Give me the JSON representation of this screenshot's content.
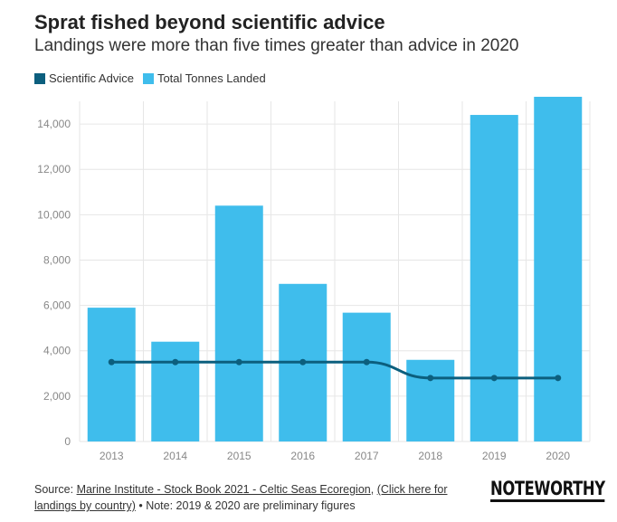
{
  "title": "Sprat fished beyond scientific advice",
  "subtitle": "Landings were more than five times greater than advice in 2020",
  "legend": {
    "advice": "Scientific Advice",
    "landed": "Total Tonnes Landed"
  },
  "colors": {
    "advice": "#0c5f7e",
    "landed": "#3fbdec",
    "grid": "#e6e6e6",
    "axis_text": "#888888"
  },
  "chart_data": {
    "type": "bar",
    "title": "Sprat fished beyond scientific advice",
    "xlabel": "",
    "ylabel": "",
    "ylim": [
      0,
      15000
    ],
    "categories": [
      "2013",
      "2014",
      "2015",
      "2016",
      "2017",
      "2018",
      "2019",
      "2020"
    ],
    "yticks": [
      0,
      2000,
      4000,
      6000,
      8000,
      10000,
      12000,
      14000
    ],
    "ytick_labels": [
      "0",
      "2,000",
      "4,000",
      "6,000",
      "8,000",
      "10,000",
      "12,000",
      "14,000"
    ],
    "series": [
      {
        "name": "Total Tonnes Landed",
        "type": "bar",
        "values": [
          5900,
          4400,
          10400,
          6950,
          5680,
          3600,
          14400,
          15200
        ]
      },
      {
        "name": "Scientific Advice",
        "type": "line",
        "values": [
          3500,
          3500,
          3500,
          3500,
          3500,
          2800,
          2800,
          2800
        ]
      }
    ]
  },
  "source": {
    "prefix": "Source: ",
    "link1": "Marine Institute - Stock Book 2021 - Celtic Seas Ecoregion",
    "sep": ", ",
    "link2": "(Click here for landings by country)",
    "note": " • Note: 2019 & 2020 are preliminary figures"
  },
  "brand": "NOTEWORTHY"
}
